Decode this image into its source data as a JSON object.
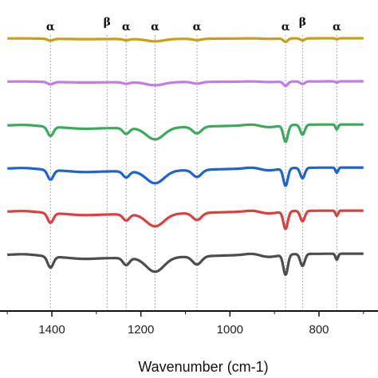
{
  "chart_data": {
    "type": "line",
    "title": "",
    "xlabel": "Wavenumber (cm-1)",
    "ylabel": "",
    "x_reversed": true,
    "xlim": [
      1500,
      700
    ],
    "xticks": [
      "1400",
      "1200",
      "1000",
      "800"
    ],
    "xtick_values": [
      1400,
      1200,
      1000,
      800
    ],
    "grid": false,
    "legend": "none",
    "phase_lines": [
      {
        "label": "α",
        "x": 1403
      },
      {
        "label": "β",
        "x": 1276
      },
      {
        "label": "α",
        "x": 1233
      },
      {
        "label": "α",
        "x": 1168
      },
      {
        "label": "α",
        "x": 1074
      },
      {
        "label": "α",
        "x": 875
      },
      {
        "label": "β",
        "x": 837
      },
      {
        "label": "α",
        "x": 760
      }
    ],
    "series": [
      {
        "color": "#c7a016",
        "baseline": 0.0,
        "depth": 0.35
      },
      {
        "color": "#c27ce6",
        "baseline": 1.0,
        "depth": 0.45
      },
      {
        "color": "#3caa5c",
        "baseline": 2.0,
        "depth": 0.95
      },
      {
        "color": "#1f63cc",
        "baseline": 3.0,
        "depth": 1.0
      },
      {
        "color": "#d94141",
        "baseline": 4.0,
        "depth": 1.0
      },
      {
        "color": "#4d4d4d",
        "baseline": 5.0,
        "depth": 1.15
      }
    ]
  }
}
